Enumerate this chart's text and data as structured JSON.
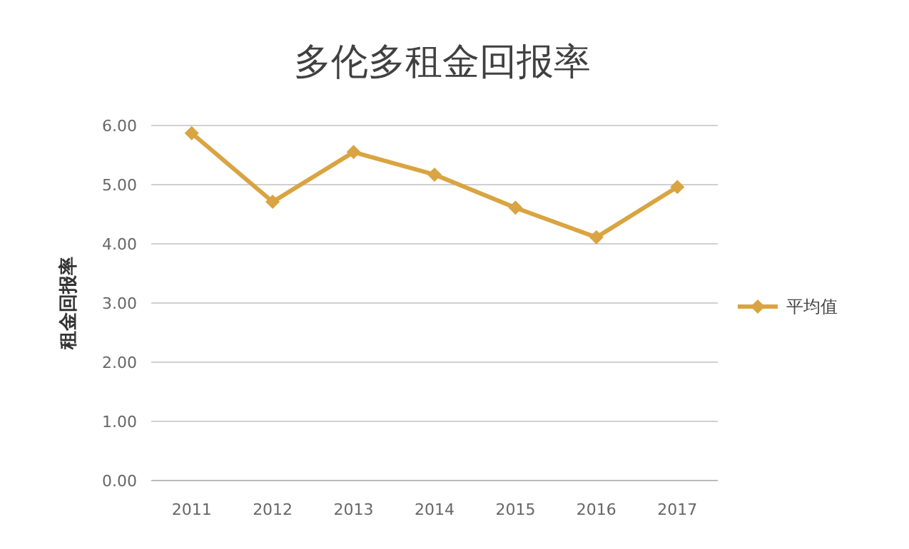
{
  "chart_data": {
    "type": "line",
    "title": "多伦多租金回报率",
    "ylabel": "租金回报率",
    "categories": [
      "2011",
      "2012",
      "2013",
      "2014",
      "2015",
      "2016",
      "2017"
    ],
    "series": [
      {
        "name": "平均值",
        "color": "#d9a441",
        "values": [
          5.87,
          4.71,
          5.55,
          5.17,
          4.61,
          4.11,
          4.96
        ]
      }
    ],
    "ylim": [
      0,
      6
    ],
    "yticks": [
      {
        "value": 0,
        "label": "0.00"
      },
      {
        "value": 1,
        "label": "1.00"
      },
      {
        "value": 2,
        "label": "2.00"
      },
      {
        "value": 3,
        "label": "3.00"
      },
      {
        "value": 4,
        "label": "4.00"
      },
      {
        "value": 5,
        "label": "5.00"
      },
      {
        "value": 6,
        "label": "6.00"
      }
    ],
    "grid": "y",
    "legend": "right",
    "marker": "diamond",
    "line_style": "solid"
  }
}
